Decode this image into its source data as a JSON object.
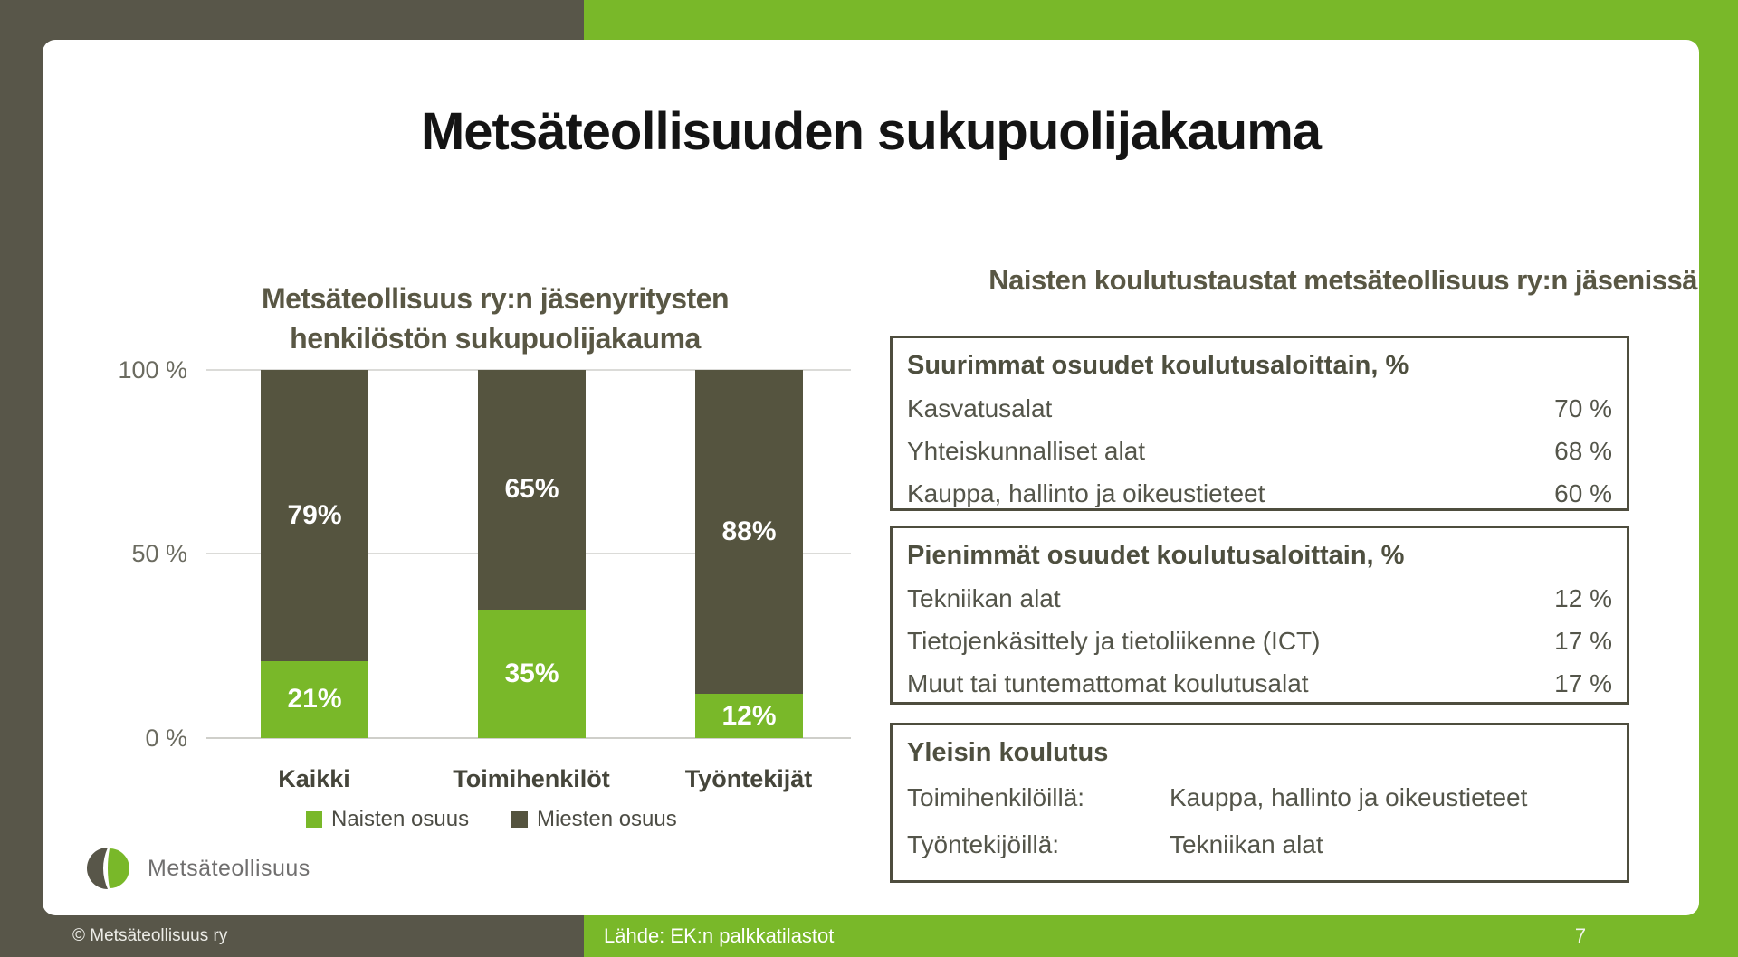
{
  "slide": {
    "title": "Metsäteollisuuden sukupuolijakauma",
    "page_number": "7",
    "footer_copyright": "© Metsäteollisuus ry",
    "footer_source": "Lähde: EK:n palkkatilastot",
    "logo_text": "Metsäteollisuus"
  },
  "colors": {
    "brand_green": "#79B829",
    "brand_olive": "#585649",
    "bar_men": "#55543F",
    "box_border": "#4E4D3E"
  },
  "chart_data": {
    "type": "bar",
    "stacked": true,
    "title": "Metsäteollisuus ry:n jäsenyritysten henkilöstön sukupuolijakauma",
    "title_line1": "Metsäteollisuus ry:n jäsenyritysten",
    "title_line2": "henkilöstön sukupuolijakauma",
    "categories": [
      "Kaikki",
      "Toimihenkilöt",
      "Työntekijät"
    ],
    "series": [
      {
        "name": "Naisten osuus",
        "color": "#79B829",
        "values": [
          21,
          35,
          12
        ],
        "labels": [
          "21%",
          "35%",
          "12%"
        ]
      },
      {
        "name": "Miesten osuus",
        "color": "#55543F",
        "values": [
          79,
          65,
          88
        ],
        "labels": [
          "79%",
          "65%",
          "88%"
        ]
      }
    ],
    "ylim": [
      0,
      100
    ],
    "y_ticks": [
      "100 %",
      "50 %",
      "0 %"
    ],
    "grid": "horizontal",
    "data_labels": true,
    "legend_position": "bottom"
  },
  "right_panel": {
    "heading": "Naisten koulutustaustat metsäteollisuus ry:n jäsenissä",
    "boxes": [
      {
        "title": "Suurimmat osuudet koulutusaloittain, %",
        "rows": [
          {
            "label": "Kasvatusalat",
            "value": "70 %"
          },
          {
            "label": "Yhteiskunnalliset alat",
            "value": "68 %"
          },
          {
            "label": "Kauppa, hallinto ja oikeustieteet",
            "value": "60 %"
          }
        ]
      },
      {
        "title": "Pienimmät osuudet koulutusaloittain, %",
        "rows": [
          {
            "label": "Tekniikan alat",
            "value": "12 %"
          },
          {
            "label": "Tietojenkäsittely ja tietoliikenne (ICT)",
            "value": "17 %"
          },
          {
            "label": "Muut tai tuntemattomat koulutusalat",
            "value": "17 %"
          }
        ]
      },
      {
        "title": "Yleisin koulutus",
        "rows": [
          {
            "label": "Toimihenkilöillä:",
            "value": "Kauppa, hallinto ja oikeustieteet"
          },
          {
            "label": "Työntekijöillä:",
            "value": "Tekniikan alat"
          }
        ]
      }
    ]
  }
}
